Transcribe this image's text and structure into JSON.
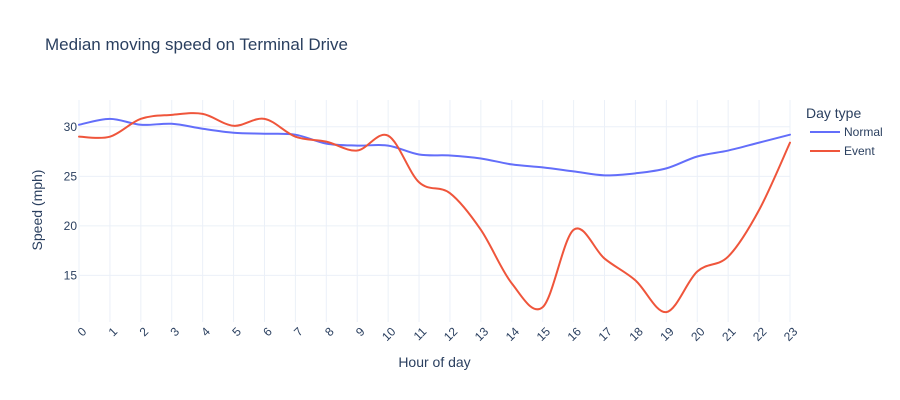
{
  "chart_data": {
    "type": "line",
    "title": "Median moving speed on Terminal Drive",
    "xlabel": "Hour of day",
    "ylabel": "Speed (mph)",
    "x": [
      0,
      1,
      2,
      3,
      4,
      5,
      6,
      7,
      8,
      9,
      10,
      11,
      12,
      13,
      14,
      15,
      16,
      17,
      18,
      19,
      20,
      21,
      22,
      23
    ],
    "x_tick_labels": [
      "0",
      "1",
      "2",
      "3",
      "4",
      "5",
      "6",
      "7",
      "8",
      "9",
      "10",
      "11",
      "12",
      "13",
      "14",
      "15",
      "16",
      "17",
      "18",
      "19",
      "20",
      "21",
      "22",
      "23"
    ],
    "y_ticks": [
      15,
      20,
      25,
      30
    ],
    "y_tick_labels": [
      "15",
      "20",
      "25",
      "30"
    ],
    "ylim": [
      10.3,
      32.7
    ],
    "grid": true,
    "legend_title": "Day type",
    "legend_position": "top-right",
    "series": [
      {
        "name": "Normal",
        "color": "#636efa",
        "values": [
          30.2,
          30.8,
          30.2,
          30.3,
          29.8,
          29.4,
          29.3,
          29.2,
          28.3,
          28.1,
          28.1,
          27.2,
          27.1,
          26.8,
          26.2,
          25.9,
          25.5,
          25.1,
          25.3,
          25.8,
          27.0,
          27.6,
          28.4,
          29.2
        ]
      },
      {
        "name": "Event",
        "color": "#ef553b",
        "values": [
          29.0,
          29.0,
          30.8,
          31.2,
          31.3,
          30.1,
          30.8,
          29.0,
          28.5,
          27.6,
          29.1,
          24.4,
          23.3,
          19.6,
          14.2,
          11.8,
          19.6,
          16.7,
          14.5,
          11.3,
          15.4,
          16.9,
          21.6,
          28.4
        ]
      }
    ]
  }
}
